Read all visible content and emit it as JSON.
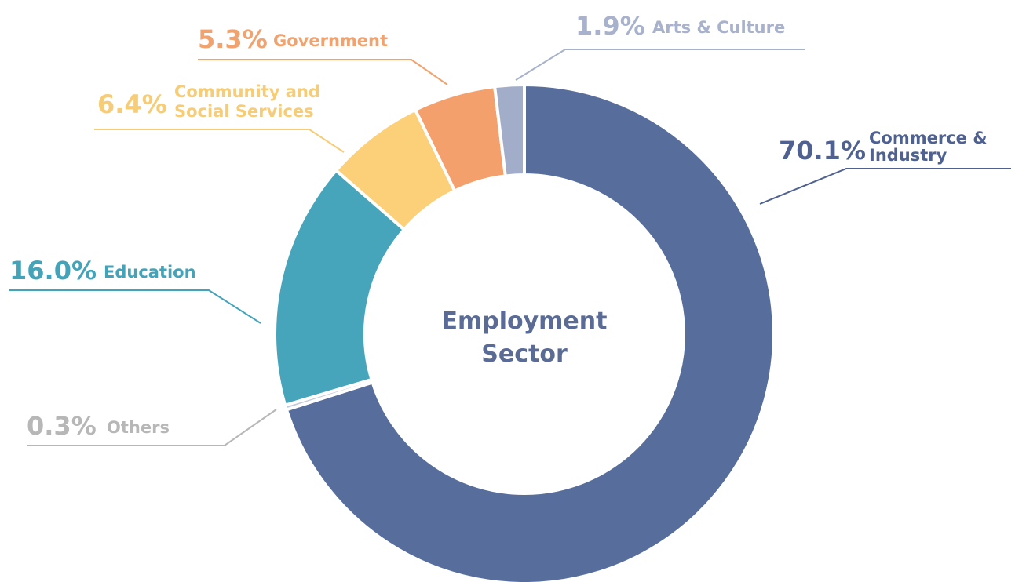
{
  "chart_data": {
    "type": "pie",
    "subtype": "donut",
    "center_label": [
      "Employment",
      "Sector"
    ],
    "start_angle_deg": 0,
    "direction": "clockwise",
    "slices": [
      {
        "label": "Commerce & Industry",
        "label_lines": [
          "Commerce &",
          "Industry"
        ],
        "value": 70.1,
        "value_text": "70.1%",
        "color": "#576d9c"
      },
      {
        "label": "Others",
        "label_lines": [
          "Others"
        ],
        "value": 0.3,
        "value_text": "0.3%",
        "color": "#c3cad8"
      },
      {
        "label": "Education",
        "label_lines": [
          "Education"
        ],
        "value": 16.0,
        "value_text": "16.0%",
        "color": "#47a5bb"
      },
      {
        "label": "Community and Social Services",
        "label_lines": [
          "Community and",
          "Social Services"
        ],
        "value": 6.4,
        "value_text": "6.4%",
        "color": "#fccf79"
      },
      {
        "label": "Government",
        "label_lines": [
          "Government"
        ],
        "value": 5.3,
        "value_text": "5.3%",
        "color": "#f4a06c"
      },
      {
        "label": "Arts & Culture",
        "label_lines": [
          "Arts & Culture"
        ],
        "value": 1.9,
        "value_text": "1.9%",
        "color": "#a2adc9"
      }
    ],
    "label_colors": [
      "#4f6190",
      "#b7b7b7",
      "#43a3b8",
      "#f6cc77",
      "#f0a36f",
      "#a9b2cc"
    ]
  }
}
